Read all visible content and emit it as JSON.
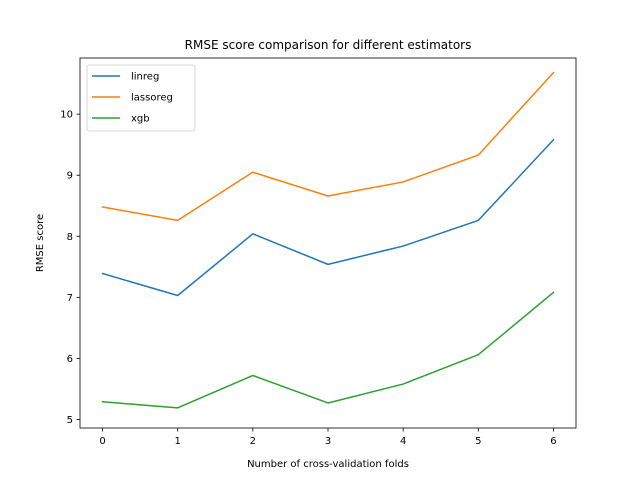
{
  "chart_data": {
    "type": "line",
    "title": "RMSE score comparison for different estimators",
    "xlabel": "Number of cross-validation folds",
    "ylabel": "RMSE score",
    "x": [
      0,
      1,
      2,
      3,
      4,
      5,
      6
    ],
    "xticks": [
      "0",
      "1",
      "2",
      "3",
      "4",
      "5",
      "6"
    ],
    "yticks": [
      "5",
      "6",
      "7",
      "8",
      "9",
      "10"
    ],
    "xlim": [
      -0.3,
      6.3
    ],
    "ylim": [
      4.86,
      10.92
    ],
    "grid": false,
    "legend_position": "top-left",
    "series": [
      {
        "name": "linreg",
        "color": "#1f77b4",
        "values": [
          7.39,
          7.03,
          8.04,
          7.54,
          7.84,
          8.26,
          9.58
        ]
      },
      {
        "name": "lassoreg",
        "color": "#ff7f0e",
        "values": [
          8.48,
          8.26,
          9.05,
          8.66,
          8.89,
          9.33,
          10.68
        ]
      },
      {
        "name": "xgb",
        "color": "#2ca02c",
        "values": [
          5.29,
          5.19,
          5.72,
          5.27,
          5.58,
          6.06,
          7.08
        ]
      }
    ]
  }
}
